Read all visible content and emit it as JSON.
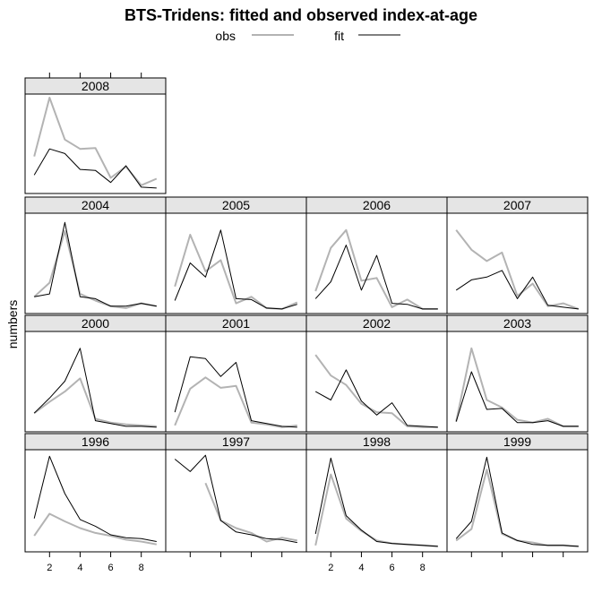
{
  "chart_data": {
    "type": "line",
    "title": "BTS-Tridens: fitted and observed index-at-age",
    "xlabel": "",
    "ylabel": "numbers",
    "legend": {
      "placement": "top",
      "entries": [
        {
          "label": "obs",
          "color": "#b3b3b3"
        },
        {
          "label": "fit",
          "color": "#000000"
        }
      ]
    },
    "x": [
      1,
      2,
      3,
      4,
      5,
      6,
      7,
      8,
      9
    ],
    "xlim": [
      0.4,
      9.6
    ],
    "x_tick_labels": [
      {
        "value": 2,
        "label": "2"
      },
      {
        "value": 4,
        "label": "4"
      },
      {
        "value": 6,
        "label": "6"
      },
      {
        "value": 8,
        "label": "8"
      }
    ],
    "panels": [
      {
        "year": "2008",
        "ylim": [
          0,
          1
        ],
        "obs": [
          0.36,
          0.99,
          0.54,
          0.44,
          0.45,
          0.13,
          0.25,
          0.05,
          0.12
        ],
        "fit": [
          0.16,
          0.44,
          0.39,
          0.22,
          0.21,
          0.08,
          0.26,
          0.03,
          0.02
        ]
      },
      {
        "year": "2004",
        "ylim": [
          0,
          1
        ],
        "obs": [
          0.14,
          0.29,
          0.84,
          0.17,
          0.1,
          0.04,
          0.02,
          0.07,
          0.04
        ],
        "fit": [
          0.14,
          0.17,
          0.93,
          0.14,
          0.12,
          0.04,
          0.04,
          0.07,
          0.04
        ]
      },
      {
        "year": "2005",
        "ylim": [
          0,
          1
        ],
        "obs": [
          0.25,
          0.8,
          0.41,
          0.53,
          0.07,
          0.14,
          0.02,
          0.01,
          0.08
        ],
        "fit": [
          0.1,
          0.5,
          0.35,
          0.85,
          0.12,
          0.11,
          0.02,
          0.01,
          0.06
        ]
      },
      {
        "year": "2006",
        "ylim": [
          0,
          1
        ],
        "obs": [
          0.2,
          0.66,
          0.85,
          0.31,
          0.34,
          0.03,
          0.11,
          0.01,
          0.01
        ],
        "fit": [
          0.12,
          0.3,
          0.69,
          0.21,
          0.58,
          0.07,
          0.06,
          0.01,
          0.01
        ]
      },
      {
        "year": "2007",
        "ylim": [
          0,
          1
        ],
        "obs": [
          0.85,
          0.64,
          0.52,
          0.61,
          0.15,
          0.28,
          0.04,
          0.07,
          0.01
        ],
        "fit": [
          0.21,
          0.32,
          0.35,
          0.42,
          0.12,
          0.35,
          0.05,
          0.03,
          0.01
        ]
      },
      {
        "year": "2000",
        "ylim": [
          0,
          1
        ],
        "obs": [
          0.16,
          0.28,
          0.39,
          0.53,
          0.1,
          0.06,
          0.04,
          0.03,
          0.02
        ],
        "fit": [
          0.16,
          0.32,
          0.5,
          0.85,
          0.08,
          0.05,
          0.02,
          0.02,
          0.01
        ]
      },
      {
        "year": "2001",
        "ylim": [
          0,
          1
        ],
        "obs": [
          0.03,
          0.42,
          0.54,
          0.43,
          0.45,
          0.06,
          0.04,
          0.01,
          0.03
        ],
        "fit": [
          0.17,
          0.76,
          0.74,
          0.55,
          0.7,
          0.08,
          0.05,
          0.02,
          0.01
        ]
      },
      {
        "year": "2002",
        "ylim": [
          0,
          1
        ],
        "obs": [
          0.78,
          0.56,
          0.46,
          0.26,
          0.17,
          0.16,
          0.02,
          0.01,
          0.01
        ],
        "fit": [
          0.39,
          0.3,
          0.62,
          0.29,
          0.14,
          0.27,
          0.03,
          0.02,
          0.01
        ]
      },
      {
        "year": "2003",
        "ylim": [
          0,
          1
        ],
        "obs": [
          0.07,
          0.85,
          0.3,
          0.22,
          0.09,
          0.06,
          0.1,
          0.02,
          0.02
        ],
        "fit": [
          0.07,
          0.6,
          0.2,
          0.21,
          0.06,
          0.06,
          0.08,
          0.02,
          0.02
        ]
      },
      {
        "year": "1996",
        "ylim": [
          0,
          1
        ],
        "obs": [
          0.13,
          0.36,
          0.28,
          0.21,
          0.16,
          0.13,
          0.09,
          0.07,
          0.04
        ],
        "fit": [
          0.31,
          0.96,
          0.57,
          0.3,
          0.23,
          0.14,
          0.11,
          0.1,
          0.07
        ]
      },
      {
        "year": "1997",
        "ylim": [
          0,
          1
        ],
        "obs": [
          null,
          null,
          0.68,
          0.29,
          0.21,
          0.16,
          0.07,
          0.11,
          0.08
        ],
        "fit": [
          0.93,
          0.8,
          0.97,
          0.29,
          0.17,
          0.14,
          0.1,
          0.09,
          0.06
        ]
      },
      {
        "year": "1998",
        "ylim": [
          0,
          1
        ],
        "obs": [
          0.03,
          0.77,
          0.31,
          0.18,
          0.08,
          0.05,
          0.04,
          0.03,
          0.02
        ],
        "fit": [
          0.15,
          0.94,
          0.34,
          0.19,
          0.07,
          0.05,
          0.04,
          0.03,
          0.02
        ]
      },
      {
        "year": "1999",
        "ylim": [
          0,
          1
        ],
        "obs": [
          0.08,
          0.2,
          0.82,
          0.15,
          0.08,
          0.06,
          0.03,
          0.03,
          0.02
        ],
        "fit": [
          0.1,
          0.28,
          0.95,
          0.16,
          0.08,
          0.04,
          0.03,
          0.03,
          0.02
        ]
      }
    ]
  }
}
